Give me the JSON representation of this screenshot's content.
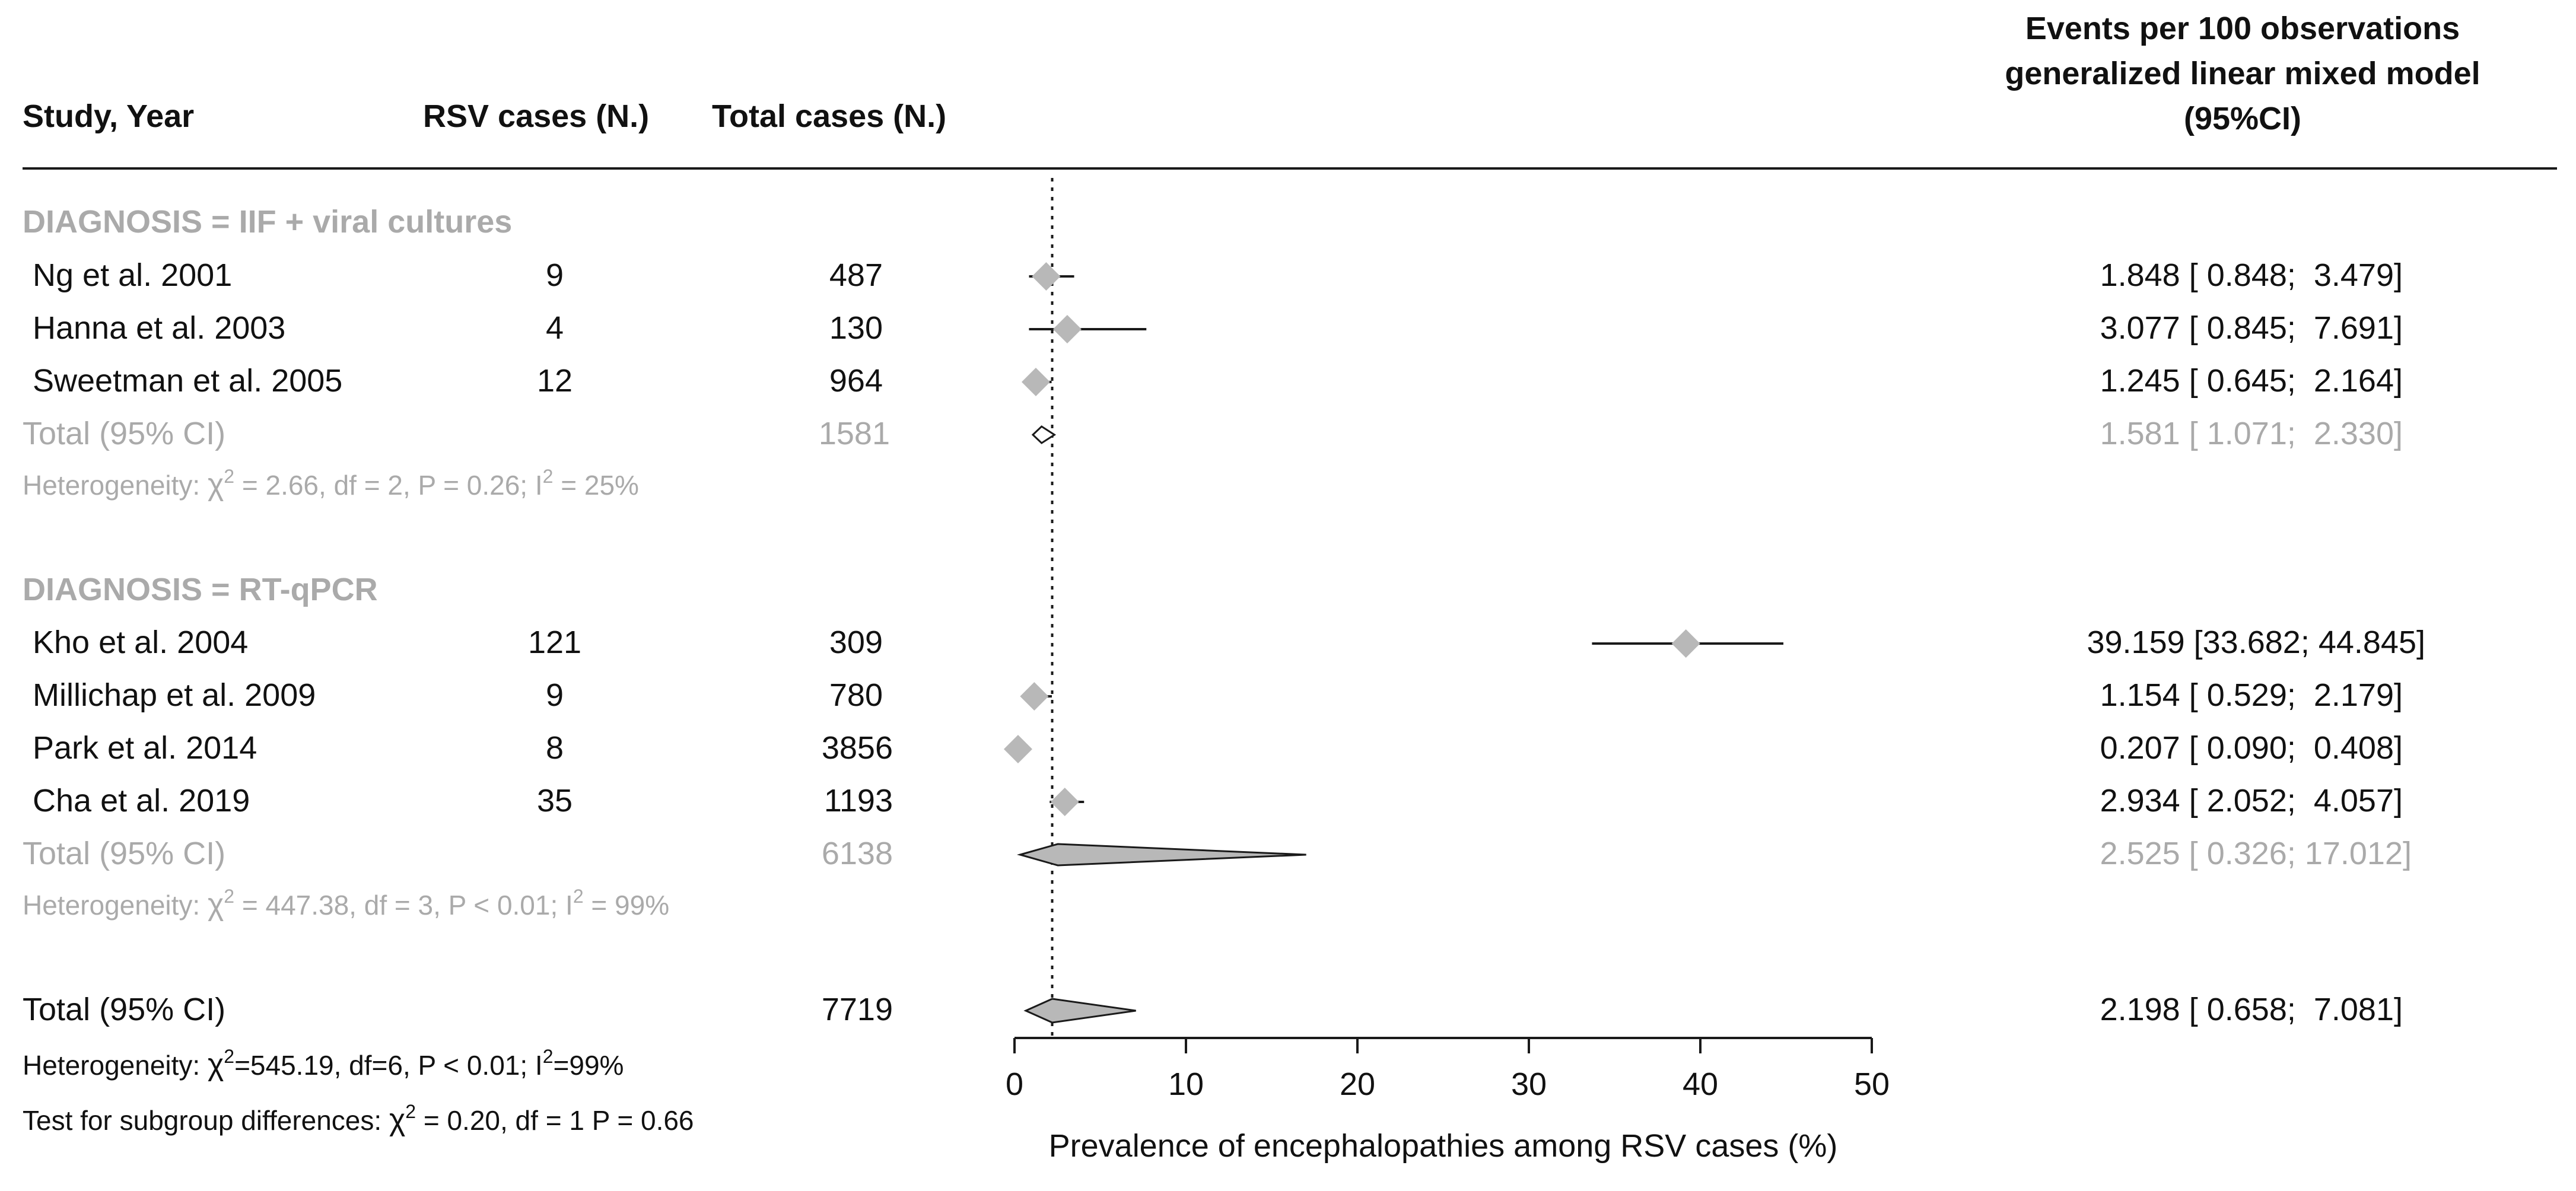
{
  "colors": {
    "text": "#111111",
    "subgroup_text": "#aaaaaa",
    "marker": "#b8b8b8",
    "line": "#1a1a1a"
  },
  "headers": {
    "study": "Study, Year",
    "rsv": "RSV cases (N.)",
    "total": "Total cases (N.)",
    "effect_line1": "Events per 100 observations",
    "effect_line2": "generalized linear mixed model",
    "effect_line3": "(95%CI)"
  },
  "groups": [
    {
      "label": "DIAGNOSIS = IIF + viral cultures",
      "total_label": "Total (95% CI)",
      "total_cases": "1581",
      "total_ci_text": "1.581 [ 1.071;  2.330]",
      "heterogeneity": {
        "prefix": "Heterogeneity: ",
        "chi": "χ",
        "sup2": "2",
        "stats": " = 2.66, df = 2, P = 0.26; I",
        "isup": "2",
        "end": " = 25%"
      }
    },
    {
      "label": "DIAGNOSIS = RT-qPCR",
      "total_label": "Total (95% CI)",
      "total_cases": "6138",
      "total_ci_text": "2.525 [ 0.326; 17.012]",
      "heterogeneity": {
        "prefix": "Heterogeneity: ",
        "chi": "χ",
        "sup2": "2",
        "stats": " = 447.38, df = 3, P < 0.01; I",
        "isup": "2",
        "end": " = 99%"
      }
    }
  ],
  "studies": [
    {
      "name": "Ng et al. 2001",
      "rsv": "9",
      "total": "487",
      "ci_text": "1.848 [ 0.848;  3.479]"
    },
    {
      "name": "Hanna et al. 2003",
      "rsv": "4",
      "total": "130",
      "ci_text": "3.077 [ 0.845;  7.691]"
    },
    {
      "name": "Sweetman et al. 2005",
      "rsv": "12",
      "total": "964",
      "ci_text": "1.245 [ 0.645;  2.164]"
    },
    {
      "name": "Kho et al. 2004",
      "rsv": "121",
      "total": "309",
      "ci_text": "39.159 [33.682; 44.845]"
    },
    {
      "name": "Millichap et al. 2009",
      "rsv": "9",
      "total": "780",
      "ci_text": "1.154 [ 0.529;  2.179]"
    },
    {
      "name": "Park et al. 2014",
      "rsv": "8",
      "total": "3856",
      "ci_text": "0.207 [ 0.090;  0.408]"
    },
    {
      "name": "Cha et al. 2019",
      "rsv": "35",
      "total": "1193",
      "ci_text": "2.934 [ 2.052;  4.057]"
    }
  ],
  "overall": {
    "label": "Total (95% CI)",
    "total_cases": "7719",
    "ci_text": "2.198 [ 0.658;  7.081]",
    "heterogeneity": {
      "prefix": "Heterogeneity: ",
      "chi": "χ",
      "sup2": "2",
      "stats": "=545.19, df=6, P < 0.01; I",
      "isup": "2",
      "end": "=99%"
    },
    "subgroup_test": {
      "prefix": "Test for subgroup differences: ",
      "chi": "χ",
      "sup2": "2",
      "stats": " = 0.20, df = 1 P = 0.66"
    }
  },
  "chart_data": {
    "type": "forest",
    "xlabel": "Prevalence of encephalopathies among RSV cases (%)",
    "xlim": [
      0,
      50
    ],
    "ticks": [
      0,
      10,
      20,
      30,
      40,
      50
    ],
    "tick_labels": [
      "0",
      "10",
      "20",
      "30",
      "40",
      "50"
    ],
    "reference_line": 2.198,
    "studies": [
      {
        "name": "Ng et al. 2001",
        "group": 0,
        "est": 1.848,
        "lo": 0.848,
        "hi": 3.479
      },
      {
        "name": "Hanna et al. 2003",
        "group": 0,
        "est": 3.077,
        "lo": 0.845,
        "hi": 7.691
      },
      {
        "name": "Sweetman et al. 2005",
        "group": 0,
        "est": 1.245,
        "lo": 0.645,
        "hi": 2.164
      },
      {
        "name": "Kho et al. 2004",
        "group": 1,
        "est": 39.159,
        "lo": 33.682,
        "hi": 44.845
      },
      {
        "name": "Millichap et al. 2009",
        "group": 1,
        "est": 1.154,
        "lo": 0.529,
        "hi": 2.179
      },
      {
        "name": "Park et al. 2014",
        "group": 1,
        "est": 0.207,
        "lo": 0.09,
        "hi": 0.408
      },
      {
        "name": "Cha et al. 2019",
        "group": 1,
        "est": 2.934,
        "lo": 2.052,
        "hi": 4.057
      }
    ],
    "summaries": [
      {
        "name": "Total (95% CI) IIF + viral cultures",
        "est": 1.581,
        "lo": 1.071,
        "hi": 2.33
      },
      {
        "name": "Total (95% CI) RT-qPCR",
        "est": 2.525,
        "lo": 0.326,
        "hi": 17.012
      },
      {
        "name": "Total (95% CI) overall",
        "est": 2.198,
        "lo": 0.658,
        "hi": 7.081
      }
    ]
  }
}
